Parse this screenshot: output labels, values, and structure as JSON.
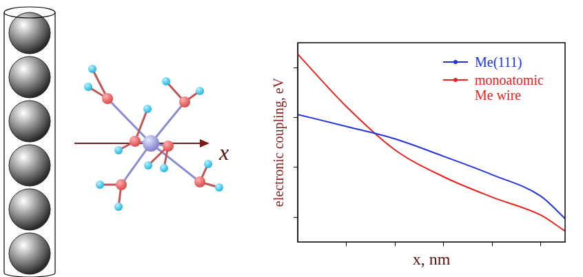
{
  "chart_data": {
    "type": "line",
    "x_label": "x, nm",
    "y_label": "electronic coupling, eV",
    "x": [
      0,
      1,
      2,
      3,
      4,
      5,
      5.5
    ],
    "xlim": [
      0,
      5.5
    ],
    "xticks": [
      1,
      2,
      3,
      4,
      5
    ],
    "ylim": [
      0,
      4
    ],
    "yticks": [
      0.5,
      1.5,
      2.5,
      3.5
    ],
    "tick_labels": false,
    "grid": false,
    "legend": "upper right",
    "series": [
      {
        "name": "Me(111)",
        "color": "#2233dd",
        "values": [
          2.56,
          2.32,
          2.07,
          1.72,
          1.35,
          0.92,
          0.47
        ]
      },
      {
        "name": "monoatomic Me wire",
        "color": "#e8231f",
        "values": [
          3.77,
          2.72,
          1.85,
          1.31,
          0.9,
          0.54,
          0.22
        ]
      }
    ]
  },
  "diagram": {
    "arrow_label": "x"
  }
}
